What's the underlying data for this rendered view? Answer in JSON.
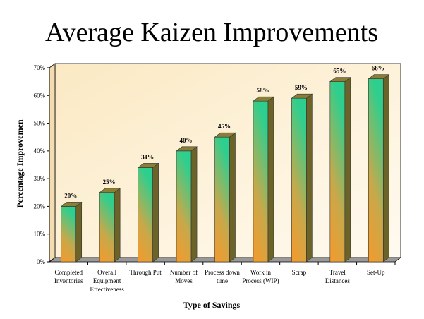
{
  "chart_data": {
    "type": "bar3d",
    "title": "Average Kaizen Improvements",
    "x_label": "Type of Savings",
    "y_label": "Percentage Improvemen",
    "categories": [
      "Completed Inventories",
      "Overall Equipment Effectiveness",
      "Through Put",
      "Number of Moves",
      "Process down time",
      "Work in Process (WIP)",
      "Scrap",
      "Travel Distances",
      "Set-Up"
    ],
    "values": [
      20,
      25,
      34,
      40,
      45,
      58,
      59,
      65,
      66
    ],
    "value_labels": [
      "20%",
      "25%",
      "34%",
      "40%",
      "45%",
      "58%",
      "59%",
      "65%",
      "66%"
    ],
    "ylim": [
      0,
      70
    ],
    "yticks": [
      {
        "value": 0,
        "label": "0%"
      },
      {
        "value": 10,
        "label": "10%"
      },
      {
        "value": 20,
        "label": "20%"
      },
      {
        "value": 30,
        "label": "30%"
      },
      {
        "value": 40,
        "label": "40%"
      },
      {
        "value": 50,
        "label": "50%"
      },
      {
        "value": 60,
        "label": "60%"
      },
      {
        "value": 70,
        "label": "70%"
      }
    ]
  }
}
